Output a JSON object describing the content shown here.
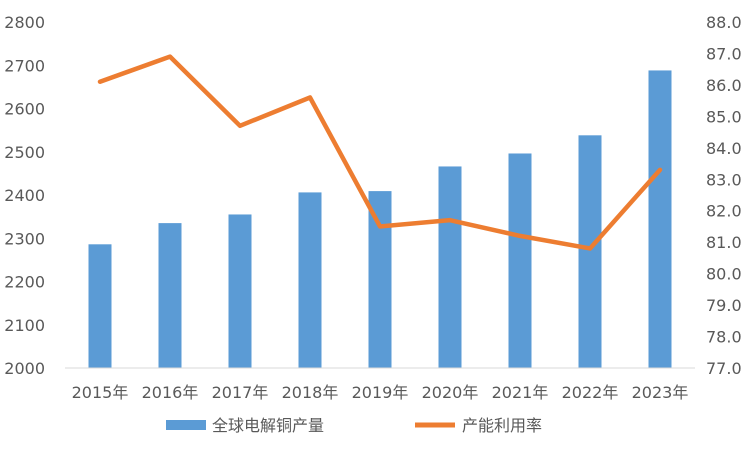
{
  "chart_data": {
    "type": "bar+line",
    "categories": [
      "2015年",
      "2016年",
      "2017年",
      "2018年",
      "2019年",
      "2020年",
      "2021年",
      "2022年",
      "2023年"
    ],
    "series": [
      {
        "name": "全球电解铜产量",
        "type": "bar",
        "axis": "left",
        "color": "#5B9BD5",
        "values": [
          2286,
          2335,
          2355,
          2406,
          2409,
          2466,
          2496,
          2538,
          2688
        ]
      },
      {
        "name": "产能利用率",
        "type": "line",
        "axis": "right",
        "color": "#ED7D31",
        "values": [
          86.1,
          86.9,
          84.7,
          85.6,
          81.5,
          81.7,
          81.2,
          80.8,
          83.3
        ]
      }
    ],
    "y_left": {
      "min": 2000,
      "max": 2800,
      "step": 100,
      "tick_labels": [
        "2000",
        "2100",
        "2200",
        "2300",
        "2400",
        "2500",
        "2600",
        "2700",
        "2800"
      ]
    },
    "y_right": {
      "min": 77,
      "max": 88,
      "step": 1,
      "tick_labels": [
        "77.0",
        "78.0",
        "79.0",
        "80.0",
        "81.0",
        "82.0",
        "83.0",
        "84.0",
        "85.0",
        "86.0",
        "87.0",
        "88.0"
      ]
    },
    "grid": false,
    "legend_position": "bottom"
  }
}
